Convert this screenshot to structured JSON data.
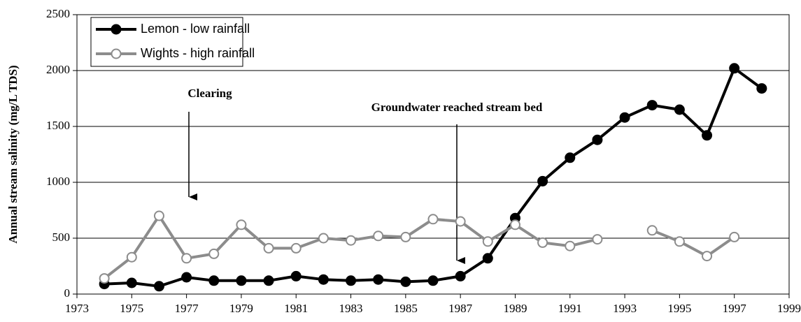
{
  "chart_data": {
    "type": "line",
    "y_label": "Annual stream salinity (mg/L TDS)",
    "x": [
      1974,
      1975,
      1976,
      1977,
      1978,
      1979,
      1980,
      1981,
      1982,
      1983,
      1984,
      1985,
      1986,
      1987,
      1988,
      1989,
      1990,
      1991,
      1992,
      1993,
      1994,
      1995,
      1996,
      1997,
      1998
    ],
    "series": [
      {
        "name": "Lemon - low rainfall",
        "color": "#000000",
        "values": [
          90,
          100,
          70,
          150,
          120,
          120,
          120,
          160,
          130,
          120,
          130,
          110,
          120,
          160,
          320,
          680,
          1010,
          1220,
          1380,
          1580,
          1690,
          1650,
          1420,
          2020,
          1840
        ]
      },
      {
        "name": "Wights - high rainfall",
        "color": "#8c8c8c",
        "values": [
          140,
          330,
          700,
          320,
          360,
          620,
          410,
          410,
          500,
          480,
          520,
          510,
          670,
          650,
          470,
          620,
          460,
          430,
          490,
          null,
          570,
          470,
          340,
          510,
          null
        ]
      }
    ],
    "annotations": [
      "Clearing",
      "Groundwater reached stream bed"
    ],
    "xlim": [
      1973,
      1999
    ],
    "xticks": [
      1973,
      1975,
      1977,
      1979,
      1981,
      1983,
      1985,
      1987,
      1989,
      1991,
      1993,
      1995,
      1997,
      1999
    ],
    "ylim": [
      0,
      2500
    ],
    "yticks": [
      0,
      500,
      1000,
      1500,
      2000,
      2500
    ],
    "grid": true
  }
}
